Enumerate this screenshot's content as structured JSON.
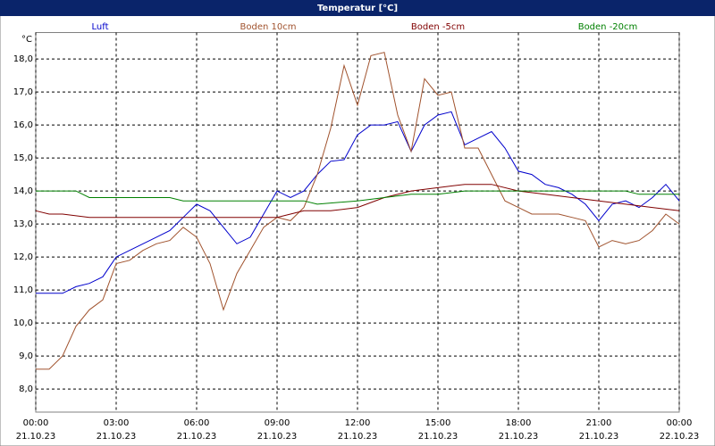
{
  "chart_data": {
    "type": "line",
    "title": "Temperatur [°C]",
    "y_unit": "°C",
    "xlim": [
      0,
      24
    ],
    "ylim": [
      7.3,
      18.8
    ],
    "grid": true,
    "xticks": [
      {
        "value": 0,
        "label": "00:00"
      },
      {
        "value": 3,
        "label": "03:00"
      },
      {
        "value": 6,
        "label": "06:00"
      },
      {
        "value": 9,
        "label": "09:00"
      },
      {
        "value": 12,
        "label": "12:00"
      },
      {
        "value": 15,
        "label": "15:00"
      },
      {
        "value": 18,
        "label": "18:00"
      },
      {
        "value": 21,
        "label": "21:00"
      },
      {
        "value": 24,
        "label": "00:00"
      }
    ],
    "xtick_dates": [
      "21.10.23",
      "21.10.23",
      "21.10.23",
      "21.10.23",
      "21.10.23",
      "21.10.23",
      "21.10.23",
      "21.10.23",
      "22.10.23"
    ],
    "yticks": [
      {
        "value": 8,
        "label": "8,0"
      },
      {
        "value": 9,
        "label": "9,0"
      },
      {
        "value": 10,
        "label": "10,0"
      },
      {
        "value": 11,
        "label": "11,0"
      },
      {
        "value": 12,
        "label": "12,0"
      },
      {
        "value": 13,
        "label": "13,0"
      },
      {
        "value": 14,
        "label": "14,0"
      },
      {
        "value": 15,
        "label": "15,0"
      },
      {
        "value": 16,
        "label": "16,0"
      },
      {
        "value": 17,
        "label": "17,0"
      },
      {
        "value": 18,
        "label": "18,0"
      }
    ],
    "series": [
      {
        "name": "Luft",
        "color": "#0000cc",
        "x": [
          0,
          0.5,
          1,
          1.5,
          2,
          2.5,
          3,
          3.5,
          4,
          4.5,
          5,
          5.5,
          6,
          6.5,
          7,
          7.5,
          8,
          8.5,
          9,
          9.5,
          10,
          10.5,
          11,
          11.5,
          12,
          12.5,
          13,
          13.5,
          14,
          14.5,
          15,
          15.5,
          16,
          16.5,
          17,
          17.5,
          18,
          18.5,
          19,
          19.5,
          20,
          20.5,
          21,
          21.5,
          22,
          22.5,
          23,
          23.5,
          24
        ],
        "values": [
          10.9,
          10.9,
          10.9,
          11.1,
          11.2,
          11.4,
          12.0,
          12.2,
          12.4,
          12.6,
          12.8,
          13.2,
          13.6,
          13.4,
          12.9,
          12.4,
          12.6,
          13.3,
          14.0,
          13.8,
          14.0,
          14.5,
          14.9,
          14.95,
          15.7,
          16.0,
          16.0,
          16.1,
          15.2,
          16.0,
          16.3,
          16.4,
          15.4,
          15.6,
          15.8,
          15.3,
          14.6,
          14.5,
          14.2,
          14.1,
          13.9,
          13.6,
          13.1,
          13.6,
          13.7,
          13.5,
          13.8,
          14.2,
          13.7
        ]
      },
      {
        "name": "Boden 10cm",
        "color": "#a0522d",
        "x": [
          0,
          0.5,
          1,
          1.5,
          2,
          2.5,
          3,
          3.5,
          4,
          4.5,
          5,
          5.5,
          6,
          6.5,
          7,
          7.5,
          8,
          8.5,
          9,
          9.5,
          10,
          10.5,
          11,
          11.5,
          12,
          12.5,
          13,
          13.5,
          14,
          14.5,
          15,
          15.5,
          16,
          16.5,
          17,
          17.5,
          18,
          18.5,
          19,
          19.5,
          20,
          20.5,
          21,
          21.5,
          22,
          22.5,
          23,
          23.5,
          24
        ],
        "values": [
          8.6,
          8.6,
          9.0,
          9.9,
          10.4,
          10.7,
          11.8,
          11.9,
          12.2,
          12.4,
          12.5,
          12.9,
          12.6,
          11.8,
          10.4,
          11.5,
          12.2,
          12.9,
          13.2,
          13.1,
          13.5,
          14.5,
          15.9,
          17.8,
          16.6,
          18.1,
          18.2,
          16.3,
          15.2,
          17.4,
          16.9,
          17.0,
          15.3,
          15.3,
          14.5,
          13.7,
          13.5,
          13.3,
          13.3,
          13.3,
          13.2,
          13.1,
          12.3,
          12.5,
          12.4,
          12.5,
          12.8,
          13.3,
          13.0
        ]
      },
      {
        "name": "Boden -5cm",
        "color": "#800000",
        "x": [
          0,
          0.5,
          1,
          2,
          3,
          4,
          5,
          6,
          7,
          8,
          9,
          9.5,
          10,
          11,
          12,
          13,
          14,
          15,
          16,
          17,
          18,
          19,
          20,
          21,
          22,
          23,
          24
        ],
        "values": [
          13.4,
          13.3,
          13.3,
          13.2,
          13.2,
          13.2,
          13.2,
          13.2,
          13.2,
          13.2,
          13.2,
          13.3,
          13.4,
          13.4,
          13.5,
          13.8,
          14.0,
          14.1,
          14.2,
          14.2,
          14.0,
          13.9,
          13.8,
          13.7,
          13.6,
          13.5,
          13.4
        ]
      },
      {
        "name": "Boden -20cm",
        "color": "#008000",
        "x": [
          0,
          1.5,
          2,
          5,
          5.5,
          10,
          10.5,
          12,
          13,
          14,
          15,
          16,
          22,
          22.5,
          24
        ],
        "values": [
          14.0,
          14.0,
          13.8,
          13.8,
          13.7,
          13.7,
          13.6,
          13.7,
          13.8,
          13.9,
          13.9,
          14.0,
          14.0,
          13.9,
          13.9
        ]
      }
    ]
  }
}
